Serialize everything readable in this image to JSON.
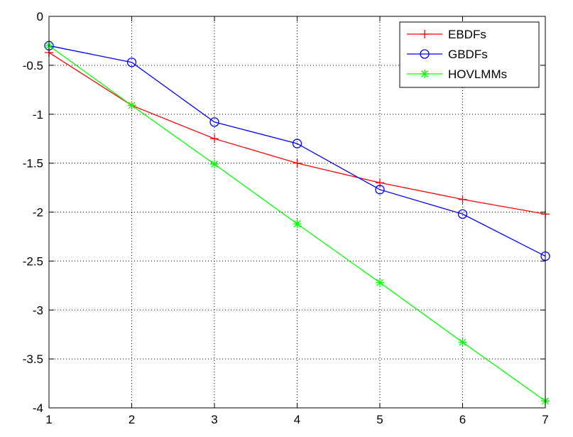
{
  "chart_data": {
    "type": "line",
    "title": "",
    "xlabel": "",
    "ylabel": "",
    "xlim": [
      1,
      7
    ],
    "ylim": [
      -4,
      0
    ],
    "xticks": [
      1,
      2,
      3,
      4,
      5,
      6,
      7
    ],
    "yticks": [
      0,
      -0.5,
      -1,
      -1.5,
      -2,
      -2.5,
      -3,
      -3.5,
      -4
    ],
    "xtick_labels": [
      "1",
      "2",
      "3",
      "4",
      "5",
      "6",
      "7"
    ],
    "ytick_labels": [
      "0",
      "-0.5",
      "-1",
      "-1.5",
      "-2",
      "-2.5",
      "-3",
      "-3.5",
      "-4"
    ],
    "grid": true,
    "legend_position": "top-right",
    "x": [
      1,
      2,
      3,
      4,
      5,
      6,
      7
    ],
    "series": [
      {
        "name": "EBDFs",
        "color": "#ff0000",
        "marker": "plus",
        "values": [
          -0.37,
          -0.91,
          -1.25,
          -1.5,
          -1.7,
          -1.87,
          -2.02
        ]
      },
      {
        "name": "GBDFs",
        "color": "#0000ff",
        "marker": "circle",
        "values": [
          -0.3,
          -0.47,
          -1.08,
          -1.3,
          -1.77,
          -2.02,
          -2.45
        ]
      },
      {
        "name": "HOVLMMs",
        "color": "#00ff00",
        "marker": "asterisk",
        "values": [
          -0.3,
          -0.91,
          -1.51,
          -2.12,
          -2.72,
          -3.33,
          -3.93
        ]
      }
    ]
  }
}
